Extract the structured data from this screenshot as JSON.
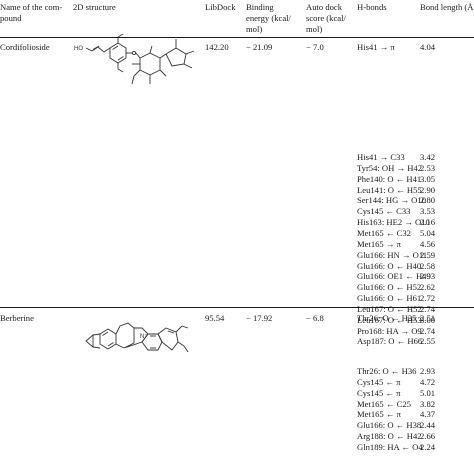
{
  "headers": {
    "name_1": "Name of the com-",
    "name_2": "pound",
    "structure": "2D structure",
    "libdock": "LibDock",
    "binding_1": "Binding",
    "binding_2": "energy (kcal/",
    "binding_3": "mol)",
    "autodock_1": "Auto dock",
    "autodock_2": "score (kcal/",
    "autodock_3": "mol)",
    "hbonds": "H-bonds",
    "bond_length": "Bond length (Å)"
  },
  "compounds": [
    {
      "name": "Cordifolioside",
      "libdock": "142.20",
      "binding": "− 21.09",
      "autodock": "− 7.0",
      "first_hbond": "His41 → π",
      "first_length": "4.04",
      "hbonds": [
        {
          "bond": "His41 → C33",
          "length": "3.42"
        },
        {
          "bond": "Tyr54: OH → H42",
          "length": "2.53"
        },
        {
          "bond": "Phe140: O ← H41",
          "length": "3.05"
        },
        {
          "bond": "Leu141: O ← H55",
          "length": "2.90"
        },
        {
          "bond": "Ser144: HG → O10",
          "length": "2.80"
        },
        {
          "bond": "Cys145 ← C33",
          "length": "3.53"
        },
        {
          "bond": "His163: HE2 → O10",
          "length": "2.16"
        },
        {
          "bond": "Met165 ← C32",
          "length": "5.04"
        },
        {
          "bond": "Met165 → π",
          "length": "4.56"
        },
        {
          "bond": "Glu166: HN → O11",
          "length": "2.59"
        },
        {
          "bond": "Glu166: O ← H40",
          "length": "2.58"
        },
        {
          "bond": "Glu166: OE1 ← H49",
          "length": "2.93"
        },
        {
          "bond": "Glu166: O ← H52",
          "length": "2.62"
        },
        {
          "bond": "Glu166: O ← H61",
          "length": "2.72"
        },
        {
          "bond": "Leu167: O ← H52",
          "length": "2.74"
        },
        {
          "bond": "Leu167: O ← H53",
          "length": "3.00"
        },
        {
          "bond": "Pro168: HA → O9",
          "length": "2.74"
        },
        {
          "bond": "Asp187: O ← H66",
          "length": "2.55"
        }
      ]
    },
    {
      "name": "Berberine",
      "libdock": "95.54",
      "binding": "− 17.92",
      "autodock": "− 6.8",
      "first_hbond": "Thr26: O ← H35",
      "first_length": "2.51",
      "hbonds": [
        {
          "bond": "Thr26: O ← H36",
          "length": "2.93"
        },
        {
          "bond": "Cys145 ← π",
          "length": "4.72"
        },
        {
          "bond": "Cys145 ← π",
          "length": "5.01"
        },
        {
          "bond": "Met165 ← C25",
          "length": "3.82"
        },
        {
          "bond": "Met165 ← π",
          "length": "4.37"
        },
        {
          "bond": "Glu166: O ← H38",
          "length": "2.44"
        },
        {
          "bond": "Arg188: O ← H42",
          "length": "2.66"
        },
        {
          "bond": "Gln189: HA ← O4",
          "length": "2.24"
        }
      ]
    }
  ],
  "atom_labels": {
    "ho": "HO",
    "nplus": "N⁺",
    "oh": "OH"
  }
}
